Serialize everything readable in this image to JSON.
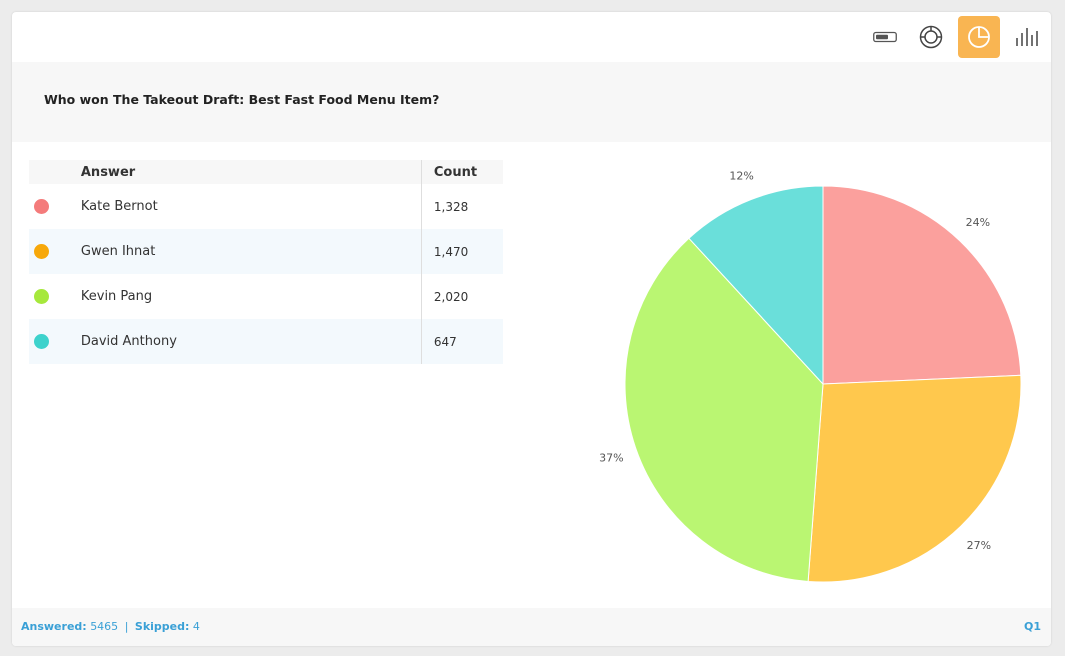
{
  "toolbar": {
    "tools": [
      {
        "icon": "toggle-icon",
        "active": false
      },
      {
        "icon": "donut-chart-icon",
        "active": false
      },
      {
        "icon": "pie-chart-icon",
        "active": true
      },
      {
        "icon": "bar-chart-icon",
        "active": false
      }
    ],
    "accent_color": "#f9b552"
  },
  "question": {
    "text": "Who won The Takeout Draft: Best Fast Food Menu Item?"
  },
  "table": {
    "headers": {
      "answer": "Answer",
      "count": "Count"
    },
    "rows": [
      {
        "answer": "Kate Bernot",
        "count": "1,328",
        "color": "#f47b7b"
      },
      {
        "answer": "Gwen Ihnat",
        "count": "1,470",
        "color": "#f7a80a"
      },
      {
        "answer": "Kevin Pang",
        "count": "2,020",
        "color": "#a6e83c"
      },
      {
        "answer": "David Anthony",
        "count": "647",
        "color": "#3dd2cc"
      }
    ]
  },
  "chart_data": {
    "type": "pie",
    "categories": [
      "Kate Bernot",
      "Gwen Ihnat",
      "Kevin Pang",
      "David Anthony"
    ],
    "values": [
      1328,
      1470,
      2020,
      647
    ],
    "labels": [
      "24%",
      "27%",
      "37%",
      "12%"
    ],
    "colors": [
      "#fba09d",
      "#ffc84d",
      "#baf672",
      "#6adfda"
    ],
    "title": ""
  },
  "footer": {
    "answered_label": "Answered:",
    "answered_value": "5465",
    "separator": "|",
    "skipped_label": "Skipped:",
    "skipped_value": "4",
    "question_number": "Q1"
  }
}
